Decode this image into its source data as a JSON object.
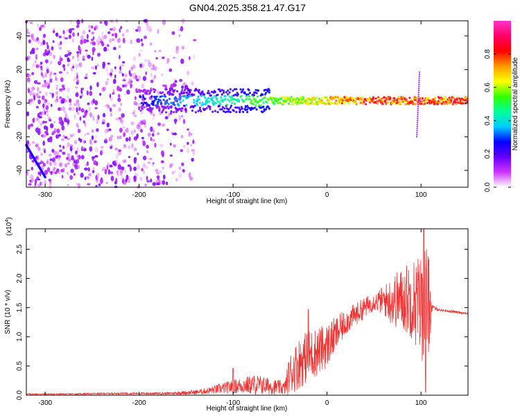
{
  "title": "GN04.2025.358.21.47.G17",
  "chart_data": [
    {
      "type": "heatmap",
      "xlabel": "Height of straight line (km)",
      "ylabel": "Frequency (Hz)",
      "xlim": [
        -320,
        150
      ],
      "ylim": [
        -50,
        49
      ],
      "xticks": [
        -300,
        -200,
        -100,
        0,
        100
      ],
      "yticks": [
        -40,
        -20,
        0,
        20,
        40
      ],
      "colorbar": {
        "label": "Normalized spectral amplitude",
        "range": [
          0,
          1
        ],
        "ticks": [
          "0.0",
          "0.2",
          "0.4",
          "0.6",
          "0.8"
        ],
        "tick_values": [
          0.0,
          0.2,
          0.4,
          0.6,
          0.8
        ],
        "colormap": [
          "#ffffff",
          "#cc33ff",
          "#6600ff",
          "#0000ff",
          "#00ccff",
          "#00ff99",
          "#33ff00",
          "#ffff00",
          "#ff9900",
          "#ff0000",
          "#ff0066",
          "#ff33cc"
        ]
      },
      "features": [
        {
          "name": "broadband noise",
          "x_range": [
            -320,
            -140
          ],
          "y_range": [
            -50,
            49
          ],
          "amplitude": 0.1
        },
        {
          "name": "carrier band",
          "x_range": [
            -200,
            150
          ],
          "center_freq": 1.5,
          "amplitude": [
            0.25,
            0.9
          ]
        },
        {
          "name": "diagonal streak",
          "x_range": [
            -320,
            -300
          ],
          "y_range": [
            -44,
            -25
          ]
        },
        {
          "name": "spike",
          "x": 97,
          "y_range": [
            -20,
            19
          ]
        }
      ]
    },
    {
      "type": "line",
      "xlabel": "Height of straight line (km)",
      "ylabel": "SNR (10 * v/v)",
      "yscale_label": "(x10",
      "yscale_exp": "4",
      "xlim": [
        -320,
        150
      ],
      "ylim": [
        0,
        2.85
      ],
      "xticks": [
        -300,
        -200,
        -100,
        0,
        100
      ],
      "yticks": [
        0.0,
        0.5,
        1.0,
        1.5,
        2.0,
        2.5
      ],
      "ytick_labels": [
        "0.0",
        "0.5",
        "1.0",
        "1.5",
        "2.0",
        "2.5"
      ],
      "color": "#ee3333",
      "envelope": {
        "x": [
          -320,
          -280,
          -220,
          -170,
          -140,
          -125,
          -110,
          -90,
          -75,
          -60,
          -45,
          -40,
          -30,
          -20,
          -10,
          0,
          10,
          20,
          30,
          40,
          50,
          60,
          70,
          80,
          90,
          100,
          105,
          108,
          112,
          120,
          130,
          140,
          150
        ],
        "mean": [
          0.02,
          0.02,
          0.03,
          0.03,
          0.05,
          0.08,
          0.12,
          0.17,
          0.18,
          0.15,
          0.12,
          0.35,
          0.55,
          0.68,
          0.75,
          0.85,
          1.05,
          1.25,
          1.38,
          1.5,
          1.6,
          1.62,
          1.62,
          1.65,
          1.65,
          1.55,
          1.5,
          1.52,
          1.5,
          1.46,
          1.44,
          1.42,
          1.4
        ],
        "spread": [
          0.01,
          0.01,
          0.015,
          0.02,
          0.04,
          0.06,
          0.1,
          0.14,
          0.18,
          0.14,
          0.12,
          0.35,
          0.45,
          0.45,
          0.42,
          0.38,
          0.3,
          0.22,
          0.2,
          0.18,
          0.15,
          0.25,
          0.45,
          0.55,
          0.7,
          0.9,
          1.2,
          0.9,
          0.05,
          0.02,
          0.02,
          0.02,
          0.02
        ]
      },
      "peaks": [
        {
          "x": 103,
          "y": 2.85
        },
        {
          "x": 105,
          "y": 0.05
        },
        {
          "x": -20,
          "y": 1.47
        },
        {
          "x": -100,
          "y": 0.46
        }
      ]
    }
  ]
}
